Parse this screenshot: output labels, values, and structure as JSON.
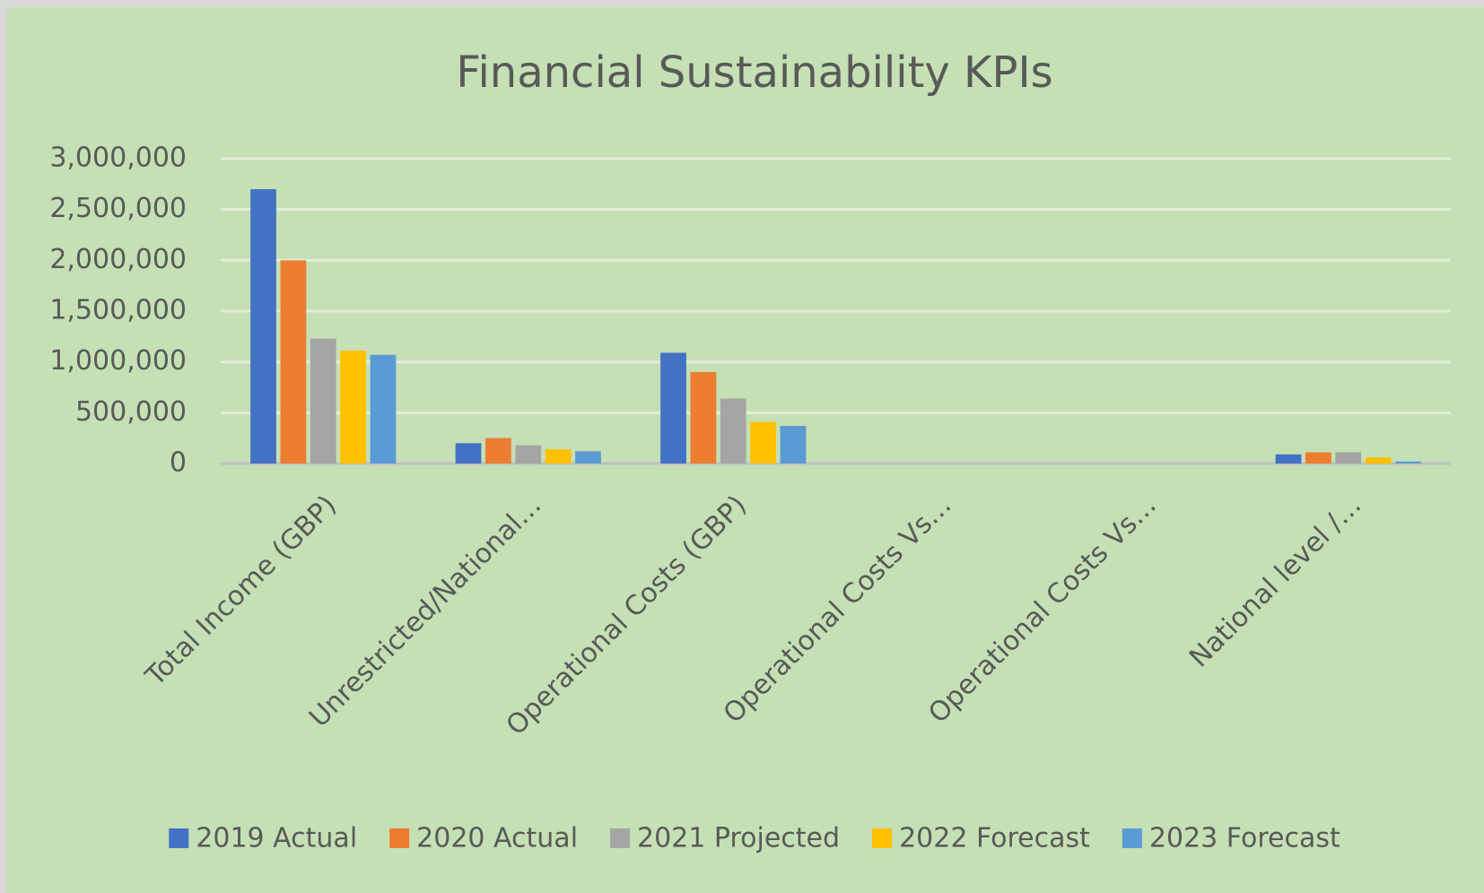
{
  "chart_data": {
    "type": "bar",
    "title": "Financial Sustainability KPIs",
    "categories": [
      "Total Income (GBP)",
      "Unrestricted/National…",
      "Operational Costs (GBP)",
      "Operational Costs Vs…",
      "Operational Costs Vs…",
      "National level /…"
    ],
    "series": [
      {
        "name": "2019 Actual",
        "color": "#4472c4",
        "values": [
          2700000,
          200000,
          1090000,
          0,
          0,
          90000
        ]
      },
      {
        "name": "2020 Actual",
        "color": "#ed7d31",
        "values": [
          2000000,
          250000,
          900000,
          0,
          0,
          110000
        ]
      },
      {
        "name": "2021 Projected",
        "color": "#a5a5a5",
        "values": [
          1230000,
          180000,
          640000,
          0,
          0,
          110000
        ]
      },
      {
        "name": "2022 Forecast",
        "color": "#ffc000",
        "values": [
          1110000,
          140000,
          410000,
          0,
          0,
          60000
        ]
      },
      {
        "name": "2023 Forecast",
        "color": "#5b9bd5",
        "values": [
          1070000,
          120000,
          370000,
          0,
          0,
          20000
        ]
      }
    ],
    "ylim": [
      0,
      3000000
    ],
    "yticks": [
      0,
      {
        "value": 500000,
        "label": "500,000"
      },
      {
        "value": 1000000,
        "label": "1,000,000"
      },
      {
        "value": 1500000,
        "label": "1,500,000"
      },
      {
        "value": 2000000,
        "label": "2,000,000"
      },
      {
        "value": 2500000,
        "label": "2,500,000"
      },
      {
        "value": 3000000,
        "label": "3,000,000"
      }
    ],
    "grid": true,
    "legend": "bottom"
  }
}
